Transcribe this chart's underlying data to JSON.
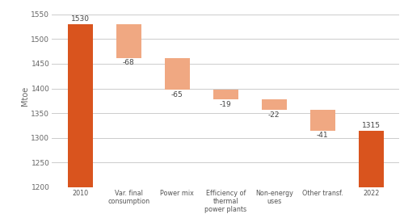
{
  "categories": [
    "2010",
    "Var. final\nconsumption",
    "Power mix",
    "Efficiency of\nthermal\npower plants",
    "Non-energy\nuses",
    "Other transf.",
    "2022"
  ],
  "bar_bottoms": [
    1200,
    1462,
    1397,
    1378,
    1356,
    1315,
    1200
  ],
  "bar_tops": [
    1530,
    1530,
    1462,
    1397,
    1378,
    1356,
    1315
  ],
  "labels": [
    "1530",
    "-68",
    "-65",
    "-19",
    "-22",
    "-41",
    "1315"
  ],
  "is_full": [
    true,
    false,
    false,
    false,
    false,
    false,
    true
  ],
  "color_full": "#d9541e",
  "color_partial": "#f0a882",
  "ylim": [
    1200,
    1570
  ],
  "yticks": [
    1200,
    1250,
    1300,
    1350,
    1400,
    1450,
    1500,
    1550
  ],
  "ylabel": "Mtoe",
  "bg_color": "#ffffff",
  "grid_color": "#cccccc"
}
